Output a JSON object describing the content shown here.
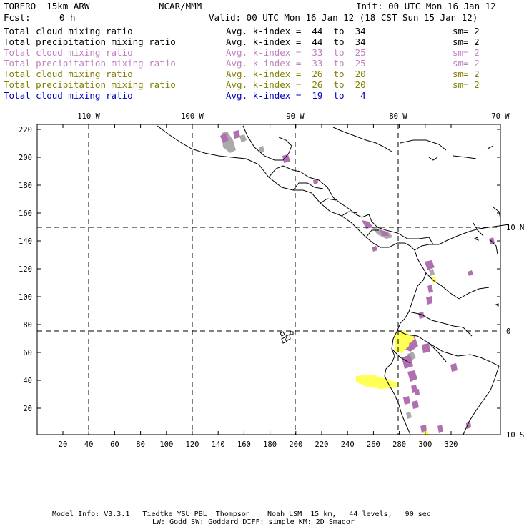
{
  "header": {
    "model": "TORERO  15km ARW",
    "center": "NCAR/MMM",
    "init": "Init: 00 UTC Mon 16 Jan 12",
    "fcst_label": "Fcst:",
    "fcst_value": "0 h",
    "valid": "Valid: 00 UTC Mon 16 Jan 12 (18 CST Sun 15 Jan 12)"
  },
  "legend": [
    {
      "field": "Total cloud mixing ratio",
      "kindex": "Avg. k-index =  44  to  34",
      "sm": "sm= 2",
      "color": "#000000"
    },
    {
      "field": "Total precipitation mixing ratio",
      "kindex": "Avg. k-index =  44  to  34",
      "sm": "sm= 2",
      "color": "#000000"
    },
    {
      "field": "Total cloud mixing ratio",
      "kindex": "Avg. k-index =  33  to  25",
      "sm": "sm= 2",
      "color": "#c080c0"
    },
    {
      "field": "Total precipitation mixing ratio",
      "kindex": "Avg. k-index =  33  to  25",
      "sm": "sm= 2",
      "color": "#c080c0"
    },
    {
      "field": "Total cloud mixing ratio",
      "kindex": "Avg. k-index =  26  to  20",
      "sm": "sm= 2",
      "color": "#808000"
    },
    {
      "field": "Total precipitation mixing ratio",
      "kindex": "Avg. k-index =  26  to  20",
      "sm": "sm= 2",
      "color": "#808000"
    },
    {
      "field": "Total cloud mixing ratio",
      "kindex": "Avg. k-index =  19  to   4",
      "sm": "",
      "color": "#0000c0"
    }
  ],
  "map": {
    "lon_labels": [
      "110 W",
      "100 W",
      "90 W",
      "80 W",
      "70 W"
    ],
    "lat_labels": [
      "10 N",
      "0",
      "10 S"
    ],
    "y_ticks": [
      "220",
      "200",
      "180",
      "160",
      "140",
      "120",
      "100",
      "80",
      "60",
      "40",
      "20"
    ],
    "x_ticks": [
      "20",
      "40",
      "60",
      "80",
      "100",
      "120",
      "140",
      "160",
      "180",
      "200",
      "220",
      "240",
      "260",
      "280",
      "300",
      "320"
    ],
    "colors": {
      "gray": "#aaaaaa",
      "purple": "#b070b0",
      "yellow": "#ffff55"
    }
  },
  "footer": {
    "line1": "Model Info: V3.3.1   Tiedtke YSU PBL  Thompson    Noah LSM  15 km,   44 levels,   90 sec",
    "line2": "LW: Godd SW: Goddard DIFF: simple KM: 2D Smagor"
  }
}
